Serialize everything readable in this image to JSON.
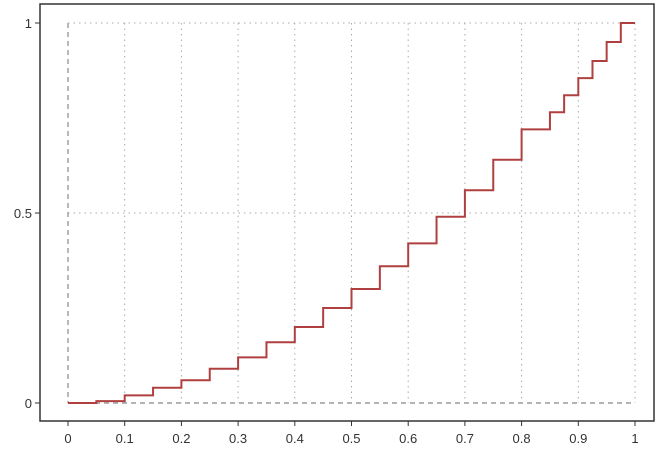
{
  "chart_data": {
    "type": "line",
    "step": "post",
    "title": "",
    "xlabel": "",
    "ylabel": "",
    "xlim": [
      0,
      1
    ],
    "ylim": [
      0,
      1
    ],
    "grid": true,
    "x_ticks": [
      "0",
      "0.1",
      "0.2",
      "0.3",
      "0.4",
      "0.5",
      "0.6",
      "0.7",
      "0.8",
      "0.9",
      "1"
    ],
    "y_ticks": [
      "0",
      "0.5",
      "1"
    ],
    "series": [
      {
        "color": "#b04040",
        "x": [
          0,
          0.05,
          0.1,
          0.15,
          0.2,
          0.25,
          0.3,
          0.35,
          0.4,
          0.45,
          0.5,
          0.55,
          0.6,
          0.65,
          0.7,
          0.75,
          0.8,
          0.85,
          0.875,
          0.9,
          0.925,
          0.95,
          0.975,
          1.0
        ],
        "y": [
          0,
          0.005,
          0.02,
          0.04,
          0.06,
          0.09,
          0.12,
          0.16,
          0.2,
          0.25,
          0.3,
          0.36,
          0.42,
          0.49,
          0.56,
          0.64,
          0.72,
          0.765,
          0.81,
          0.855,
          0.9,
          0.95,
          1.0,
          1.0
        ]
      }
    ]
  }
}
